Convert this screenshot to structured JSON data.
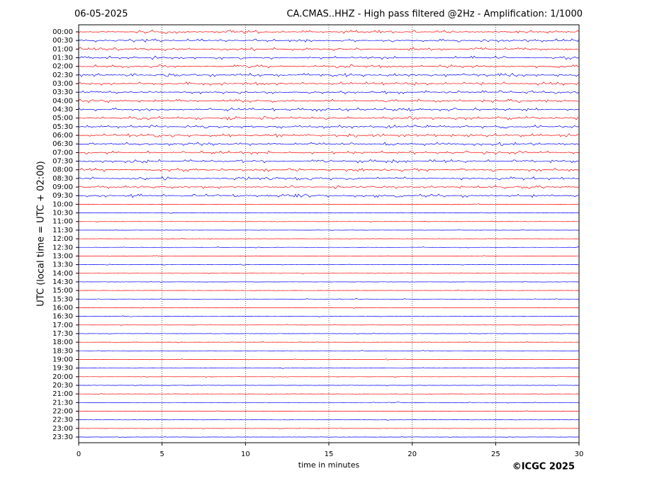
{
  "chart_data": {
    "type": "helicorder",
    "date": "06-05-2025",
    "title": "CA.CMAS..HHZ - High pass filtered @2Hz - Amplification: 1/1000",
    "ylabel": "UTC (local time = UTC + 02:00)",
    "xlabel": "time in minutes",
    "copyright": "©ICGC 2025",
    "categories": [
      "00:00",
      "00:30",
      "01:00",
      "01:30",
      "02:00",
      "02:30",
      "03:00",
      "03:30",
      "04:00",
      "04:30",
      "05:00",
      "05:30",
      "06:00",
      "06:30",
      "07:00",
      "07:30",
      "08:00",
      "08:30",
      "09:00",
      "09:30",
      "10:00",
      "10:30",
      "11:00",
      "11:30",
      "12:00",
      "12:30",
      "13:00",
      "13:30",
      "14:00",
      "14:30",
      "15:00",
      "15:30",
      "16:00",
      "16:30",
      "17:00",
      "17:30",
      "18:00",
      "18:30",
      "19:00",
      "19:30",
      "20:00",
      "20:30",
      "21:00",
      "21:30",
      "22:00",
      "22:30",
      "23:00",
      "23:30"
    ],
    "colors": [
      "#ff0000",
      "#0000ff"
    ],
    "xlim": [
      0,
      30
    ],
    "xticks": [
      0,
      5,
      10,
      15,
      20,
      25,
      30
    ],
    "grid": true
  }
}
